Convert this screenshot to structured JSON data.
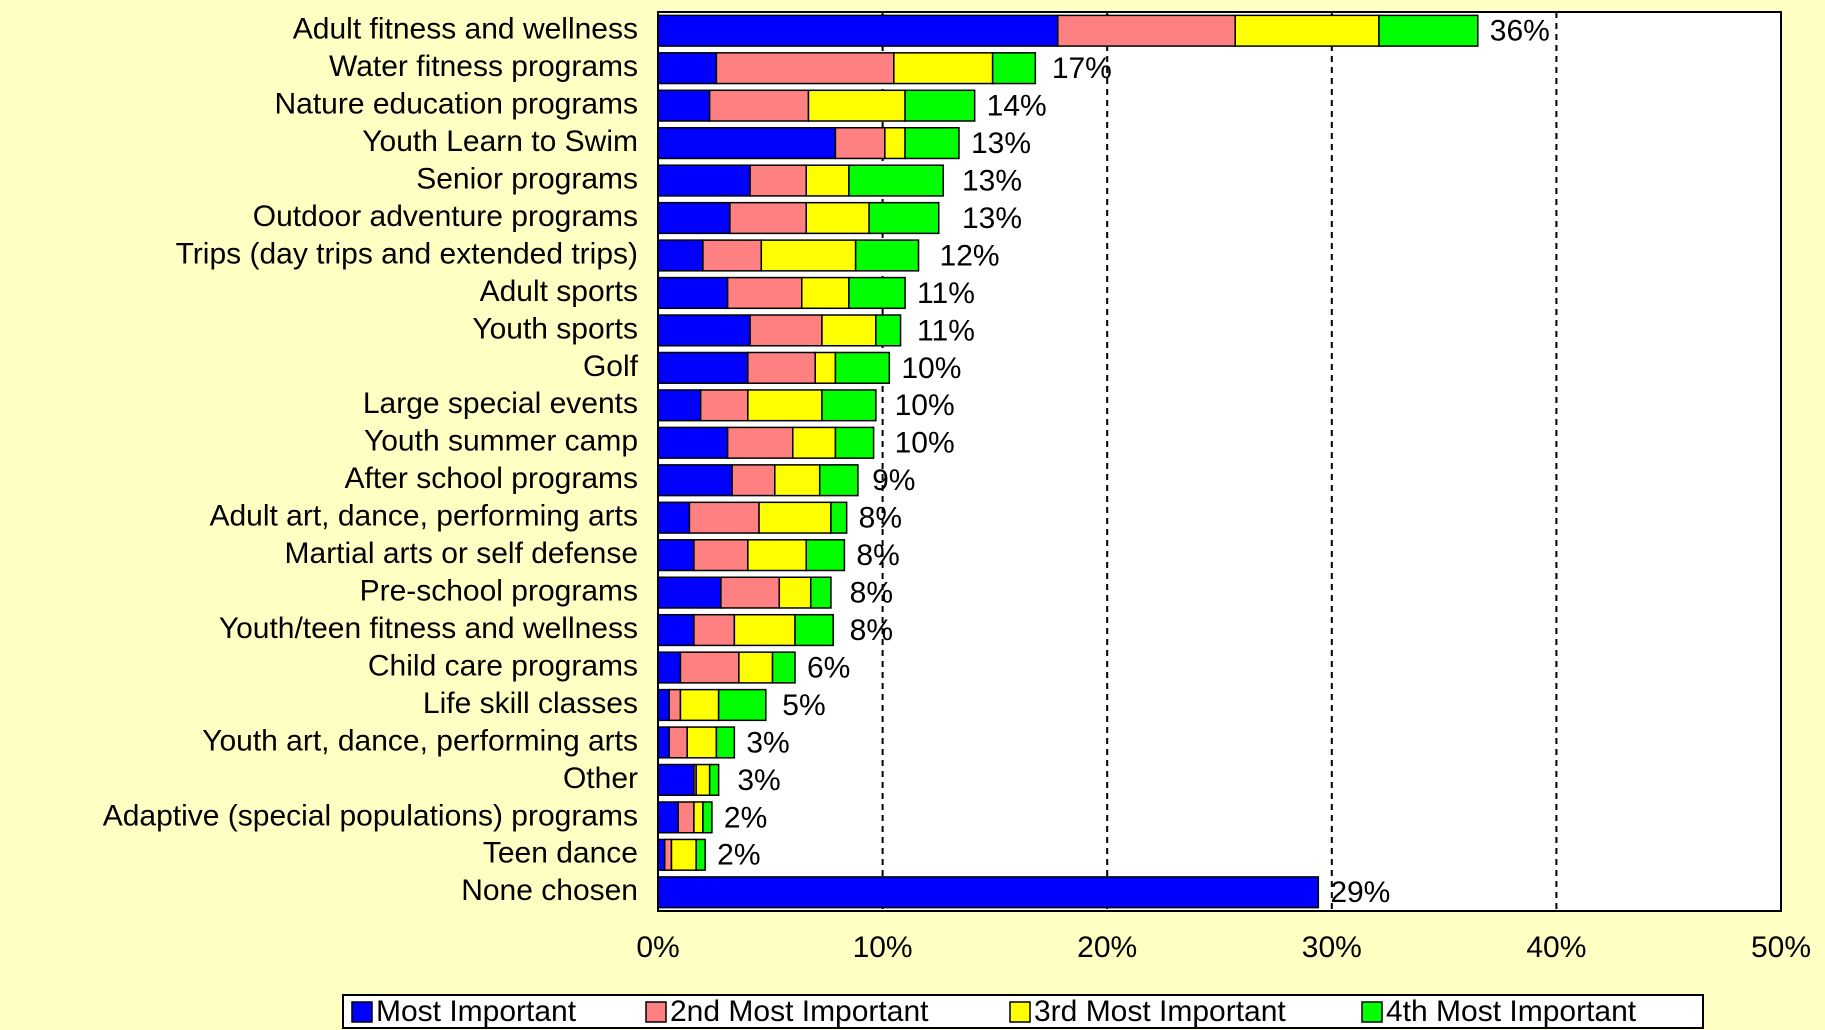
{
  "chart_data": {
    "type": "stacked_barh",
    "categories": [
      "Adult fitness and wellness",
      "Water fitness programs",
      "Nature education programs",
      "Youth Learn to Swim",
      "Senior programs",
      "Outdoor adventure programs",
      "Trips (day trips and extended trips)",
      "Adult sports",
      "Youth sports",
      "Golf",
      "Large special events",
      "Youth summer camp",
      "After school programs",
      "Adult art, dance, performing arts",
      "Martial arts or self defense",
      "Pre-school programs",
      "Youth/teen fitness and wellness",
      "Child care programs",
      "Life skill classes",
      "Youth art, dance, performing arts",
      "Other",
      "Adaptive (special populations) programs",
      "Teen dance",
      "None chosen"
    ],
    "series": [
      {
        "name": "Most Important",
        "color": "#0000ff",
        "values": [
          17.8,
          2.6,
          2.3,
          7.9,
          4.1,
          3.2,
          2.0,
          3.1,
          4.1,
          4.0,
          1.9,
          3.1,
          3.3,
          1.4,
          1.6,
          2.8,
          1.6,
          1.0,
          0.5,
          0.5,
          1.6,
          0.9,
          0.3,
          29.4
        ]
      },
      {
        "name": "2nd Most Important",
        "color": "#ff8080",
        "values": [
          7.9,
          7.9,
          4.4,
          2.2,
          2.5,
          3.4,
          2.6,
          3.3,
          3.2,
          3.0,
          2.1,
          2.9,
          1.9,
          3.1,
          2.4,
          2.6,
          1.8,
          2.6,
          0.5,
          0.8,
          0.1,
          0.7,
          0.3,
          0
        ]
      },
      {
        "name": "3rd Most Important",
        "color": "#ffff00",
        "values": [
          6.4,
          4.4,
          4.3,
          0.9,
          1.9,
          2.8,
          4.2,
          2.1,
          2.4,
          0.9,
          3.3,
          1.9,
          2.0,
          3.2,
          2.6,
          1.4,
          2.7,
          1.5,
          1.7,
          1.3,
          0.6,
          0.4,
          1.1,
          0
        ]
      },
      {
        "name": "4th Most Important",
        "color": "#00ff00",
        "values": [
          4.4,
          1.9,
          3.1,
          2.4,
          4.2,
          3.1,
          2.8,
          2.5,
          1.1,
          2.4,
          2.4,
          1.7,
          1.7,
          0.7,
          1.7,
          0.9,
          1.7,
          1.0,
          2.1,
          0.8,
          0.4,
          0.4,
          0.4,
          0
        ]
      }
    ],
    "totals": {
      "values": [
        36,
        17,
        14,
        13,
        13,
        13,
        12,
        11,
        11,
        10,
        10,
        10,
        9,
        8,
        8,
        8,
        8,
        6,
        5,
        3,
        3,
        2,
        2,
        29
      ],
      "value_labels": [
        "36%",
        "17%",
        "14%",
        "13%",
        "13%",
        "13%",
        "12%",
        "11%",
        "11%",
        "10%",
        "10%",
        "10%",
        "9%",
        "8%",
        "8%",
        "8%",
        "8%",
        "6%",
        "5%",
        "3%",
        "3%",
        "2%",
        "2%",
        "29%"
      ]
    },
    "xlim": [
      0,
      50
    ],
    "xticks": [
      {
        "value": 0,
        "label": "0%"
      },
      {
        "value": 10,
        "label": "10%"
      },
      {
        "value": 20,
        "label": "20%"
      },
      {
        "value": 30,
        "label": "30%"
      },
      {
        "value": 40,
        "label": "40%"
      },
      {
        "value": 50,
        "label": "50%"
      }
    ],
    "grid": true,
    "legend": "bottom"
  }
}
